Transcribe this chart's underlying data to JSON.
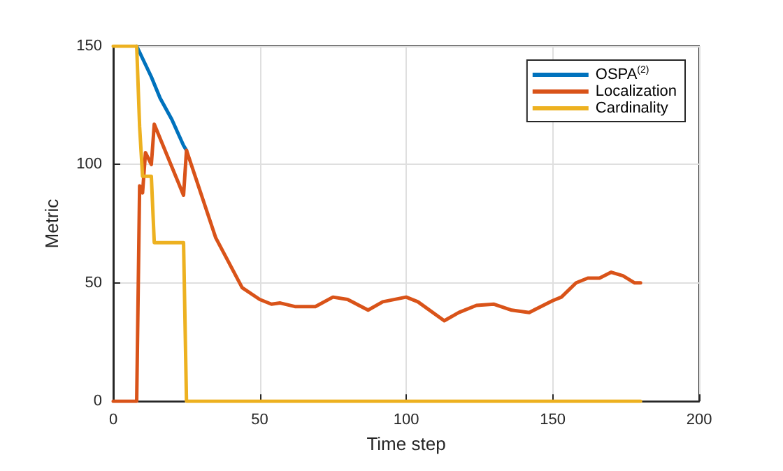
{
  "chart_data": {
    "type": "line",
    "xlabel": "Time step",
    "ylabel": "Metric",
    "xlim": [
      0,
      200
    ],
    "xticks": [
      0,
      50,
      100,
      150,
      200
    ],
    "ylim": [
      0,
      150
    ],
    "yticks": [
      0,
      50,
      100,
      150
    ],
    "grid": true,
    "legend": "top right",
    "line_style": "solid",
    "marker": "none",
    "series": [
      {
        "name": "OSPA$^{(2)}$",
        "color": "#0072bd",
        "x": [
          8,
          13,
          16,
          20,
          24,
          25
        ],
        "values": [
          150,
          137,
          128,
          119,
          108,
          106
        ]
      },
      {
        "name": "Localization",
        "color": "#d95319",
        "x": [
          0,
          8,
          9,
          10,
          11,
          13,
          14,
          24,
          25,
          35,
          44,
          50,
          54,
          57,
          62,
          69,
          75,
          80,
          87,
          92,
          100,
          104,
          113,
          118,
          124,
          130,
          136,
          142,
          150,
          153,
          158,
          162,
          166,
          170,
          174,
          178,
          180
        ],
        "values": [
          0,
          0,
          91,
          88,
          105,
          100,
          117,
          87,
          106,
          69,
          48,
          43,
          41,
          41.5,
          40,
          40,
          44,
          43,
          38.5,
          42,
          44,
          42,
          34,
          37.5,
          40.5,
          41,
          38.5,
          37.5,
          42.5,
          44,
          50,
          52,
          52,
          54.5,
          53,
          50,
          50
        ]
      },
      {
        "name": "Cardinality",
        "color": "#edb120",
        "x": [
          0,
          8,
          9,
          10,
          13,
          14,
          24,
          25,
          180
        ],
        "values": [
          150,
          150,
          116,
          95,
          95,
          67,
          67,
          0,
          0
        ]
      }
    ]
  }
}
